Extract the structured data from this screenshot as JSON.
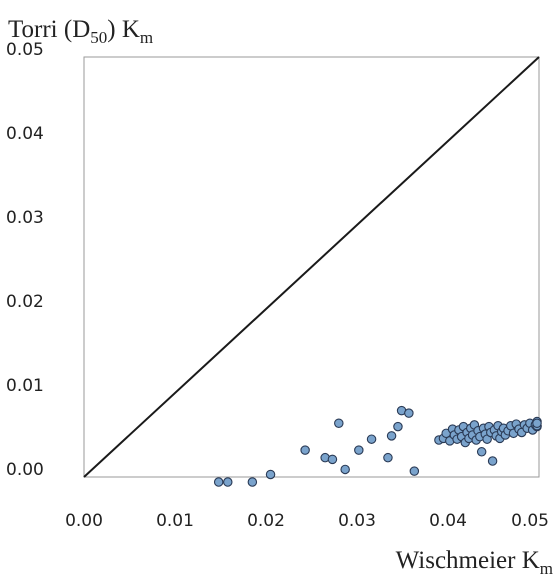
{
  "chart_data": {
    "type": "scatter",
    "title": "",
    "ylabel": {
      "base": "Torri (D",
      "sub1": "50",
      "mid": ") K",
      "sub2": "m"
    },
    "xlabel": {
      "base": "Wischmeier K",
      "sub": "m"
    },
    "xlim": [
      0,
      0.05
    ],
    "ylim": [
      0,
      0.05
    ],
    "x_ticks": [
      "0.00",
      "0.01",
      "0.02",
      "0.03",
      "0.04",
      "0.05"
    ],
    "y_ticks": [
      "0.00",
      "0.01",
      "0.02",
      "0.03",
      "0.04",
      "0.05"
    ],
    "reference_line": {
      "type": "1:1",
      "x": [
        0,
        0.05
      ],
      "y": [
        0,
        0.05
      ]
    },
    "grid": false,
    "legend": "none",
    "colors": {
      "marker_fill": "#7aa3cc",
      "marker_edge": "#2a3a55",
      "line": "#1a1a1a",
      "frame": "#9a9a9a"
    },
    "series": [
      {
        "points": [
          [
            0.0148,
            -0.0006
          ],
          [
            0.0158,
            -0.0006
          ],
          [
            0.0185,
            -0.0006
          ],
          [
            0.0205,
            0.0003
          ],
          [
            0.0243,
            0.0032
          ],
          [
            0.0265,
            0.0023
          ],
          [
            0.0273,
            0.0021
          ],
          [
            0.028,
            0.0064
          ],
          [
            0.0287,
            0.0009
          ],
          [
            0.0302,
            0.0032
          ],
          [
            0.0316,
            0.0045
          ],
          [
            0.0334,
            0.0023
          ],
          [
            0.0338,
            0.0049
          ],
          [
            0.0345,
            0.006
          ],
          [
            0.0349,
            0.0079
          ],
          [
            0.0357,
            0.0076
          ],
          [
            0.0363,
            0.0007
          ],
          [
            0.039,
            0.0044
          ],
          [
            0.0395,
            0.0046
          ],
          [
            0.0398,
            0.0052
          ],
          [
            0.0402,
            0.0043
          ],
          [
            0.0405,
            0.0057
          ],
          [
            0.0407,
            0.005
          ],
          [
            0.041,
            0.0045
          ],
          [
            0.0412,
            0.0056
          ],
          [
            0.0415,
            0.0048
          ],
          [
            0.0417,
            0.006
          ],
          [
            0.0419,
            0.0041
          ],
          [
            0.0421,
            0.0053
          ],
          [
            0.0423,
            0.0046
          ],
          [
            0.0425,
            0.0058
          ],
          [
            0.0427,
            0.005
          ],
          [
            0.0429,
            0.0062
          ],
          [
            0.0431,
            0.0044
          ],
          [
            0.0433,
            0.0055
          ],
          [
            0.0435,
            0.0048
          ],
          [
            0.0437,
            0.003
          ],
          [
            0.0439,
            0.0058
          ],
          [
            0.0441,
            0.0051
          ],
          [
            0.0443,
            0.0045
          ],
          [
            0.0445,
            0.006
          ],
          [
            0.0447,
            0.0053
          ],
          [
            0.0449,
            0.0019
          ],
          [
            0.0451,
            0.0056
          ],
          [
            0.0453,
            0.0049
          ],
          [
            0.0455,
            0.0061
          ],
          [
            0.0457,
            0.0046
          ],
          [
            0.0459,
            0.0054
          ],
          [
            0.0461,
            0.0058
          ],
          [
            0.0463,
            0.005
          ],
          [
            0.0466,
            0.0055
          ],
          [
            0.0469,
            0.0061
          ],
          [
            0.0472,
            0.0052
          ],
          [
            0.0475,
            0.0063
          ],
          [
            0.0478,
            0.0057
          ],
          [
            0.0481,
            0.0053
          ],
          [
            0.0484,
            0.0062
          ],
          [
            0.0487,
            0.0058
          ],
          [
            0.049,
            0.0064
          ],
          [
            0.0493,
            0.0056
          ],
          [
            0.0496,
            0.0062
          ],
          [
            0.0499,
            0.006
          ],
          [
            0.0502,
            0.0066
          ],
          [
            0.0505,
            0.0061
          ],
          [
            0.0508,
            0.0064
          ]
        ]
      }
    ]
  }
}
